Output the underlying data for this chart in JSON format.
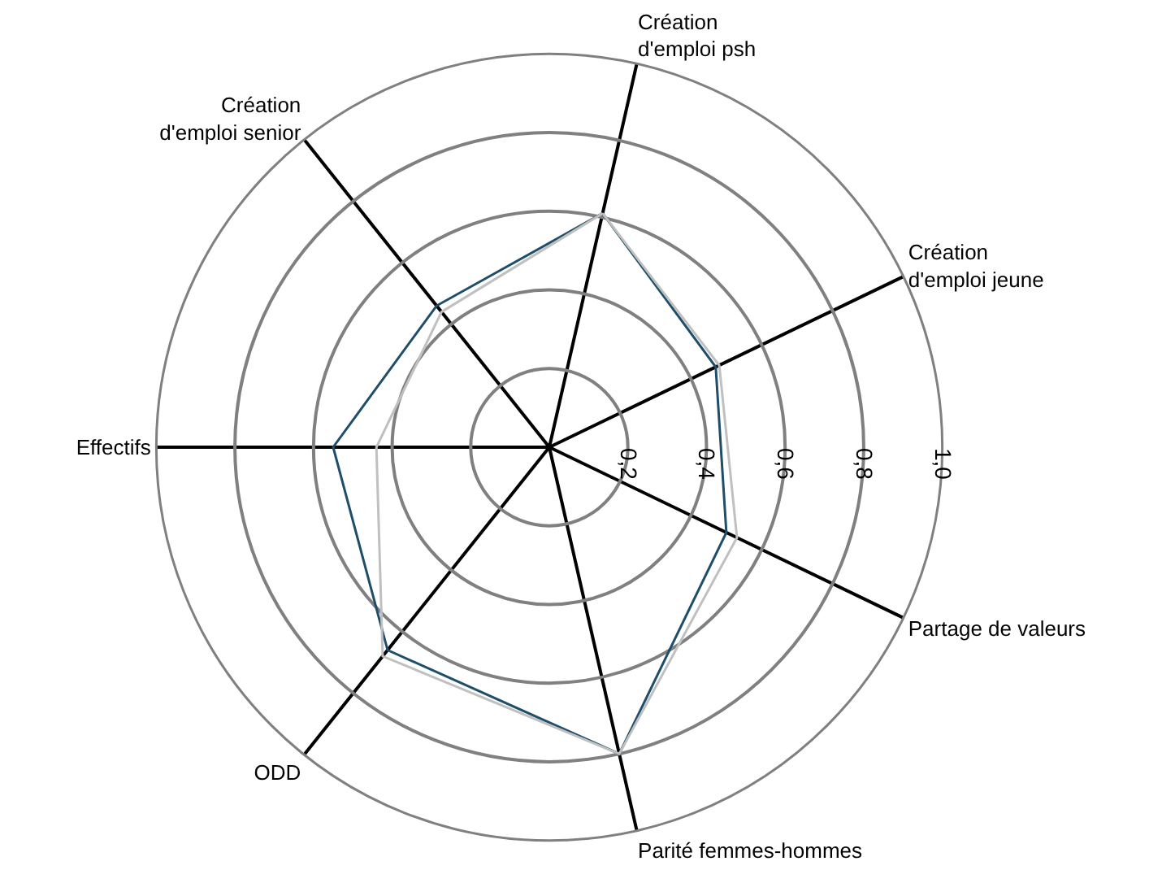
{
  "chart_data": {
    "type": "radar",
    "categories": [
      "Création\nd'emploi psh",
      "Création\nd'emploi jeune",
      "Partage de valeurs",
      "Parité femmes-hommes",
      "ODD",
      "Effectifs",
      "Création\nd'emploi senior"
    ],
    "series": [
      {
        "color": "#1f4e6b",
        "values": [
          0.61,
          0.47,
          0.5,
          0.8,
          0.66,
          0.55,
          0.46
        ]
      },
      {
        "color": "#c0c0c0",
        "values": [
          0.61,
          0.48,
          0.53,
          0.8,
          0.68,
          0.44,
          0.44
        ]
      }
    ],
    "ylim": [
      0,
      1.0
    ],
    "yticks": [
      {
        "value": 0.2,
        "label": "0,2"
      },
      {
        "value": 0.4,
        "label": "0,4"
      },
      {
        "value": 0.6,
        "label": "0,6"
      },
      {
        "value": 0.8,
        "label": "0,8"
      },
      {
        "value": 1.0,
        "label": "1,0"
      }
    ],
    "grid": true,
    "marker": "none",
    "line_style": "solid"
  }
}
